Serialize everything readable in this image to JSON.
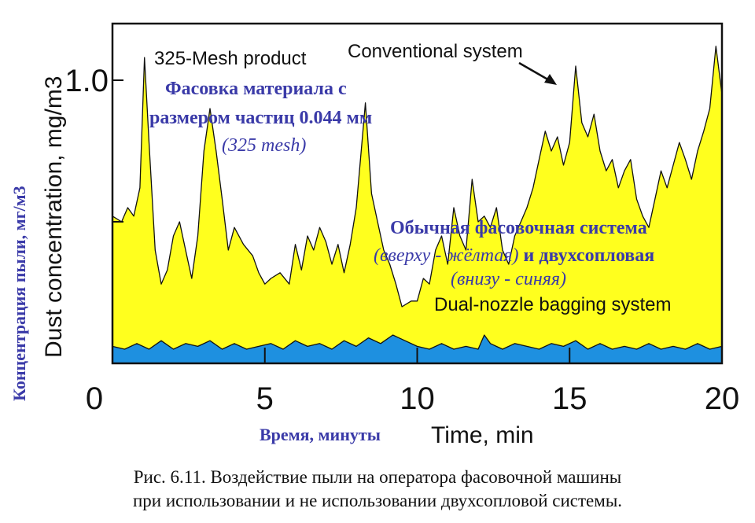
{
  "chart_data": {
    "type": "area",
    "xlabel": "Time, min",
    "xlabel_ru": "Время, минуты",
    "ylabel": "Dust concentration, mg/m3",
    "ylabel_ru": "Концентрация пыли, мг/м3",
    "xlim": [
      0,
      20
    ],
    "ylim": [
      0,
      1.2
    ],
    "x_ticks": [
      "0",
      "5",
      "10",
      "15",
      "20"
    ],
    "y_ticks": [
      "1.0"
    ],
    "grid": false,
    "series": [
      {
        "name": "Conventional system",
        "color": "#ffff1e",
        "points": [
          [
            0.0,
            0.52
          ],
          [
            0.3,
            0.5
          ],
          [
            0.5,
            0.55
          ],
          [
            0.7,
            0.52
          ],
          [
            0.9,
            0.62
          ],
          [
            1.05,
            1.08
          ],
          [
            1.2,
            0.78
          ],
          [
            1.4,
            0.4
          ],
          [
            1.6,
            0.28
          ],
          [
            1.8,
            0.33
          ],
          [
            2.0,
            0.45
          ],
          [
            2.2,
            0.5
          ],
          [
            2.4,
            0.4
          ],
          [
            2.6,
            0.3
          ],
          [
            2.8,
            0.45
          ],
          [
            3.0,
            0.75
          ],
          [
            3.2,
            0.9
          ],
          [
            3.4,
            0.75
          ],
          [
            3.6,
            0.58
          ],
          [
            3.8,
            0.4
          ],
          [
            4.0,
            0.48
          ],
          [
            4.3,
            0.42
          ],
          [
            4.6,
            0.38
          ],
          [
            4.8,
            0.32
          ],
          [
            5.0,
            0.28
          ],
          [
            5.2,
            0.3
          ],
          [
            5.5,
            0.32
          ],
          [
            5.8,
            0.28
          ],
          [
            6.0,
            0.42
          ],
          [
            6.2,
            0.33
          ],
          [
            6.4,
            0.45
          ],
          [
            6.6,
            0.4
          ],
          [
            6.8,
            0.48
          ],
          [
            7.0,
            0.43
          ],
          [
            7.2,
            0.35
          ],
          [
            7.4,
            0.42
          ],
          [
            7.6,
            0.32
          ],
          [
            7.8,
            0.42
          ],
          [
            8.0,
            0.55
          ],
          [
            8.3,
            0.92
          ],
          [
            8.5,
            0.6
          ],
          [
            8.7,
            0.5
          ],
          [
            8.9,
            0.4
          ],
          [
            9.1,
            0.35
          ],
          [
            9.3,
            0.28
          ],
          [
            9.5,
            0.2
          ],
          [
            9.8,
            0.22
          ],
          [
            10.0,
            0.22
          ],
          [
            10.2,
            0.3
          ],
          [
            10.4,
            0.28
          ],
          [
            10.6,
            0.4
          ],
          [
            10.8,
            0.45
          ],
          [
            11.0,
            0.35
          ],
          [
            11.2,
            0.55
          ],
          [
            11.4,
            0.45
          ],
          [
            11.6,
            0.4
          ],
          [
            11.8,
            0.65
          ],
          [
            12.0,
            0.5
          ],
          [
            12.2,
            0.52
          ],
          [
            12.4,
            0.48
          ],
          [
            12.6,
            0.55
          ],
          [
            12.8,
            0.4
          ],
          [
            13.0,
            0.35
          ],
          [
            13.2,
            0.45
          ],
          [
            13.4,
            0.5
          ],
          [
            13.6,
            0.55
          ],
          [
            13.8,
            0.62
          ],
          [
            14.0,
            0.72
          ],
          [
            14.2,
            0.82
          ],
          [
            14.4,
            0.75
          ],
          [
            14.6,
            0.8
          ],
          [
            14.8,
            0.7
          ],
          [
            15.0,
            0.78
          ],
          [
            15.2,
            1.05
          ],
          [
            15.4,
            0.85
          ],
          [
            15.6,
            0.8
          ],
          [
            15.8,
            0.88
          ],
          [
            16.0,
            0.75
          ],
          [
            16.2,
            0.68
          ],
          [
            16.4,
            0.72
          ],
          [
            16.6,
            0.62
          ],
          [
            16.8,
            0.68
          ],
          [
            17.0,
            0.72
          ],
          [
            17.2,
            0.58
          ],
          [
            17.4,
            0.52
          ],
          [
            17.6,
            0.48
          ],
          [
            17.8,
            0.58
          ],
          [
            18.0,
            0.68
          ],
          [
            18.2,
            0.62
          ],
          [
            18.4,
            0.7
          ],
          [
            18.6,
            0.78
          ],
          [
            18.8,
            0.72
          ],
          [
            19.0,
            0.65
          ],
          [
            19.2,
            0.75
          ],
          [
            19.4,
            0.82
          ],
          [
            19.6,
            0.9
          ],
          [
            19.8,
            1.12
          ],
          [
            20.0,
            0.95
          ]
        ]
      },
      {
        "name": "Dual-nozzle bagging system",
        "color": "#1e90e0",
        "points": [
          [
            0.0,
            0.06
          ],
          [
            0.4,
            0.05
          ],
          [
            0.8,
            0.07
          ],
          [
            1.2,
            0.05
          ],
          [
            1.6,
            0.08
          ],
          [
            2.0,
            0.05
          ],
          [
            2.4,
            0.07
          ],
          [
            2.8,
            0.06
          ],
          [
            3.2,
            0.08
          ],
          [
            3.6,
            0.05
          ],
          [
            4.0,
            0.07
          ],
          [
            4.4,
            0.05
          ],
          [
            4.8,
            0.06
          ],
          [
            5.2,
            0.07
          ],
          [
            5.6,
            0.05
          ],
          [
            6.0,
            0.08
          ],
          [
            6.4,
            0.06
          ],
          [
            6.8,
            0.07
          ],
          [
            7.2,
            0.05
          ],
          [
            7.6,
            0.08
          ],
          [
            8.0,
            0.06
          ],
          [
            8.4,
            0.09
          ],
          [
            8.8,
            0.07
          ],
          [
            9.2,
            0.1
          ],
          [
            9.6,
            0.08
          ],
          [
            10.0,
            0.06
          ],
          [
            10.4,
            0.05
          ],
          [
            10.8,
            0.07
          ],
          [
            11.2,
            0.05
          ],
          [
            11.6,
            0.06
          ],
          [
            12.0,
            0.05
          ],
          [
            12.2,
            0.1
          ],
          [
            12.4,
            0.07
          ],
          [
            12.8,
            0.05
          ],
          [
            13.2,
            0.07
          ],
          [
            13.6,
            0.06
          ],
          [
            14.0,
            0.05
          ],
          [
            14.4,
            0.07
          ],
          [
            14.8,
            0.06
          ],
          [
            15.2,
            0.08
          ],
          [
            15.6,
            0.05
          ],
          [
            16.0,
            0.07
          ],
          [
            16.4,
            0.05
          ],
          [
            16.8,
            0.06
          ],
          [
            17.2,
            0.05
          ],
          [
            17.6,
            0.07
          ],
          [
            18.0,
            0.05
          ],
          [
            18.4,
            0.06
          ],
          [
            18.8,
            0.05
          ],
          [
            19.2,
            0.07
          ],
          [
            19.6,
            0.05
          ],
          [
            20.0,
            0.06
          ]
        ]
      }
    ],
    "annotations": {
      "mesh_product": "325-Mesh product",
      "conventional": "Conventional system",
      "dual_nozzle": "Dual-nozzle bagging system",
      "ru_mesh_line1": "Фасовка материала с",
      "ru_mesh_line2": "размером частиц 0.044 мм",
      "ru_mesh_line3": "(325 mesh)",
      "ru_system_line1": "Обычная фасовочная система",
      "ru_system_line2a": "(вверху - жёлтая)",
      "ru_system_line2b": " и двухсопловая",
      "ru_system_line3": "(внизу - синяя)"
    }
  },
  "caption": {
    "line1": "Рис. 6.11. Воздействие пыли на оператора фасовочной машины",
    "line2": "при использовании и не использовании двухсопловой системы."
  }
}
